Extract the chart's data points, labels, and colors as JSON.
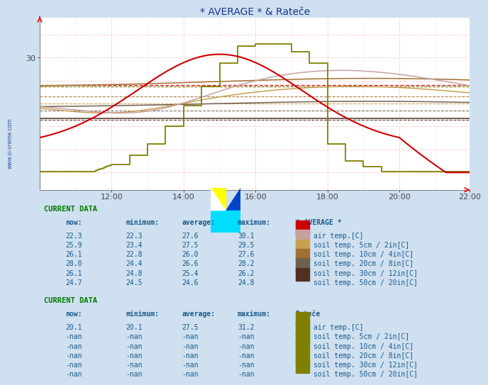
{
  "title": "* AVERAGE * & Rateče",
  "title_color": "#1a3a8a",
  "bg_color": "#cfe0f0",
  "plot_bg_color": "#ffffff",
  "xlim": [
    0,
    287
  ],
  "ylim": [
    18.5,
    33.5
  ],
  "xtick_labels": [
    "12:00",
    "14:00",
    "16:00",
    "18:00",
    "20:00",
    "22:00"
  ],
  "xtick_positions": [
    48,
    96,
    144,
    192,
    240,
    287
  ],
  "avg_air_color": "#cc0000",
  "avg_soil5_color": "#c8a0a0",
  "avg_soil10_color": "#c8a050",
  "avg_soil20_color": "#a07030",
  "avg_soil30_color": "#706050",
  "avg_soil50_color": "#503020",
  "ratece_air_color": "#808000",
  "hline_avg_air": 27.6,
  "hline_avg_soil5": 27.5,
  "hline_avg_soil10": 26.0,
  "hline_avg_soil20": 26.6,
  "hline_avg_soil30": 25.4,
  "hline_avg_soil50": 24.6,
  "hline_ratece_air": 27.5,
  "table1_rows": [
    [
      "22.3",
      "22.3",
      "27.6",
      "30.1",
      "#cc0000",
      "air temp.[C]"
    ],
    [
      "25.9",
      "23.4",
      "27.5",
      "29.5",
      "#c8a0a0",
      "soil temp. 5cm / 2in[C]"
    ],
    [
      "26.1",
      "22.8",
      "26.0",
      "27.6",
      "#c8a050",
      "soil temp. 10cm / 4in[C]"
    ],
    [
      "28.0",
      "24.4",
      "26.6",
      "28.2",
      "#a07030",
      "soil temp. 20cm / 8in[C]"
    ],
    [
      "26.1",
      "24.8",
      "25.4",
      "26.2",
      "#706050",
      "soil temp. 30cm / 12in[C]"
    ],
    [
      "24.7",
      "24.5",
      "24.6",
      "24.8",
      "#503020",
      "soil temp. 50cm / 20in[C]"
    ]
  ],
  "table2_rows": [
    [
      "20.1",
      "20.1",
      "27.5",
      "31.2",
      "#808000",
      "air temp.[C]"
    ],
    [
      "-nan",
      "-nan",
      "-nan",
      "-nan",
      "#808000",
      "soil temp. 5cm / 2in[C]"
    ],
    [
      "-nan",
      "-nan",
      "-nan",
      "-nan",
      "#808000",
      "soil temp. 10cm / 4in[C]"
    ],
    [
      "-nan",
      "-nan",
      "-nan",
      "-nan",
      "#808000",
      "soil temp. 20cm / 8in[C]"
    ],
    [
      "-nan",
      "-nan",
      "-nan",
      "-nan",
      "#808000",
      "soil temp. 30cm / 12in[C]"
    ],
    [
      "-nan",
      "-nan",
      "-nan",
      "-nan",
      "#808000",
      "soil temp. 50cm / 20in[C]"
    ]
  ],
  "table_bg": "#cfe0f0",
  "table_text_color": "#1a5a8a",
  "current_data_color": "#007700"
}
